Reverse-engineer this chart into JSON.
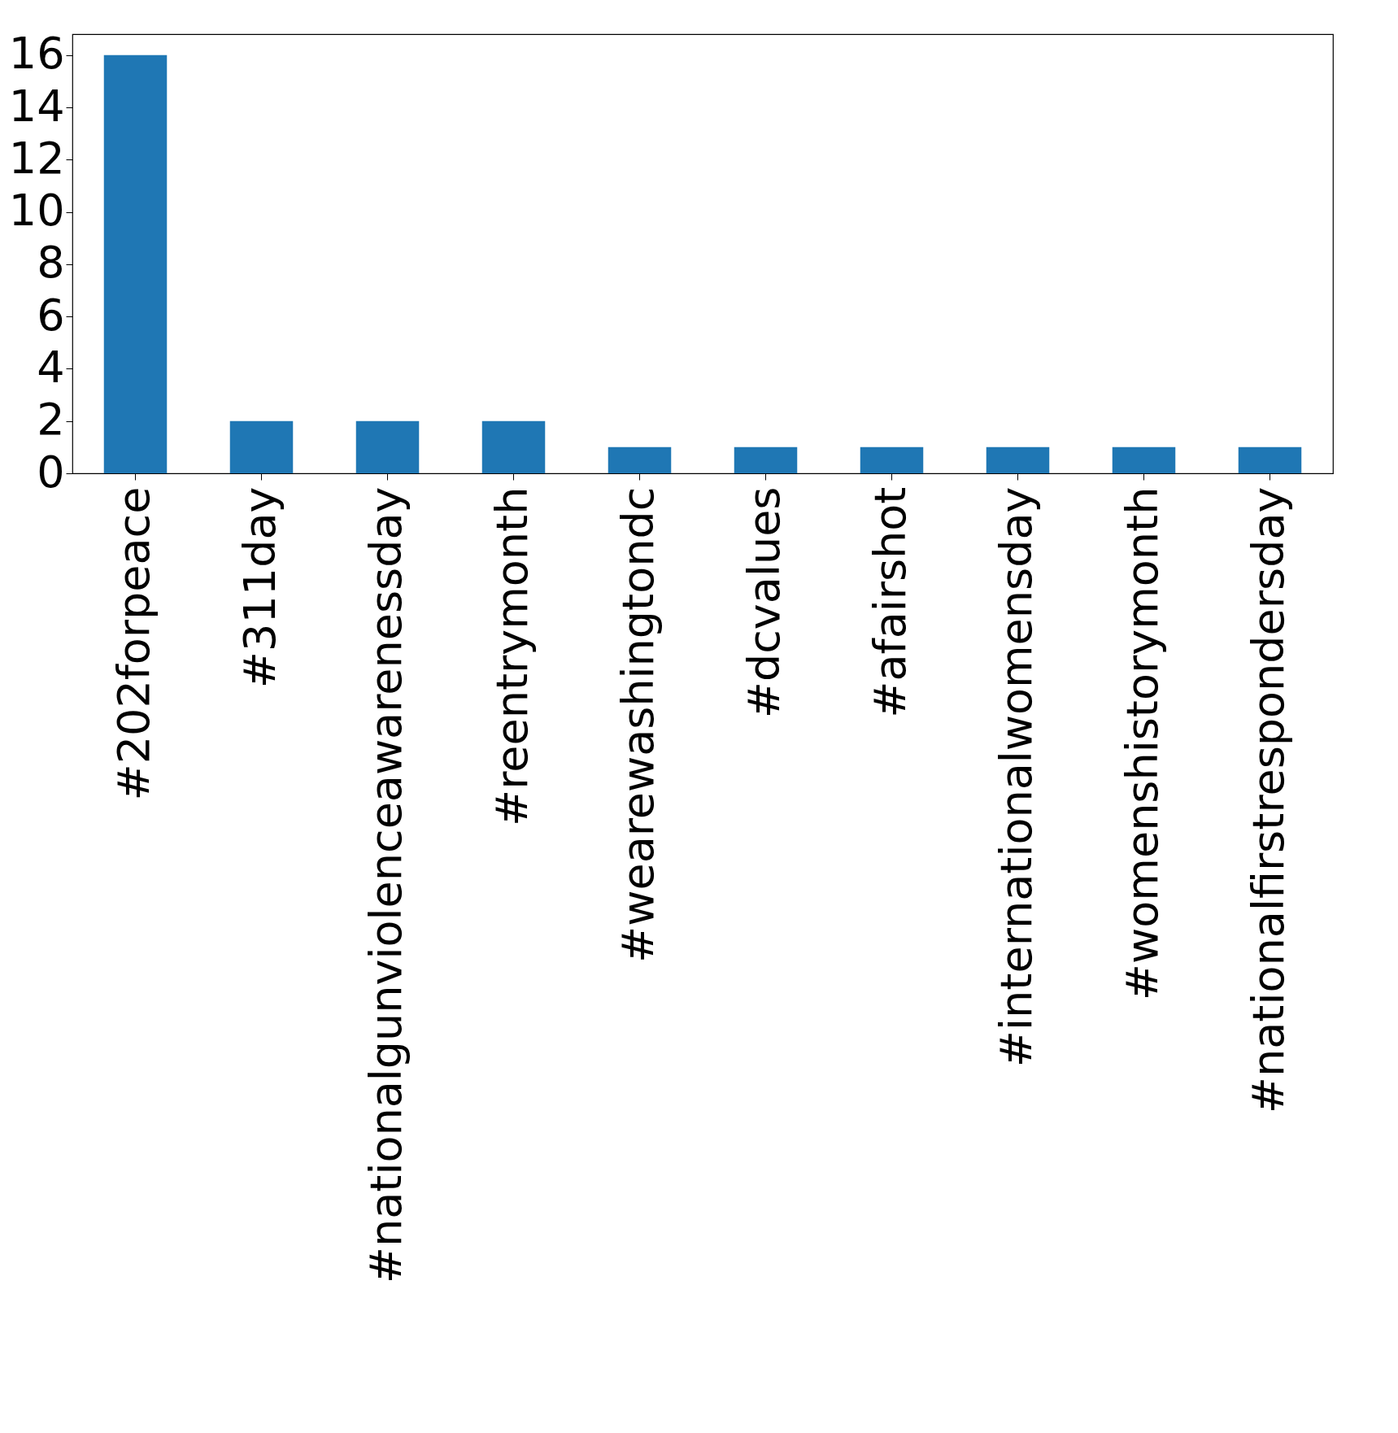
{
  "chart_data": {
    "type": "bar",
    "categories": [
      "#202forpeace",
      "#311day",
      "#nationalgunviolenceawarenessday",
      "#reentrymonth",
      "#wearewashingtondc",
      "#dcvalues",
      "#afairshot",
      "#internationalwomensday",
      "#womenshistorymonth",
      "#nationalfirstrespondersday"
    ],
    "values": [
      16,
      2,
      2,
      2,
      1,
      1,
      1,
      1,
      1,
      1
    ],
    "color": "#1f77b4",
    "ylim": [
      0,
      16.8
    ],
    "yticks": [
      0,
      2,
      4,
      6,
      8,
      10,
      12,
      14,
      16
    ],
    "grid": false
  }
}
